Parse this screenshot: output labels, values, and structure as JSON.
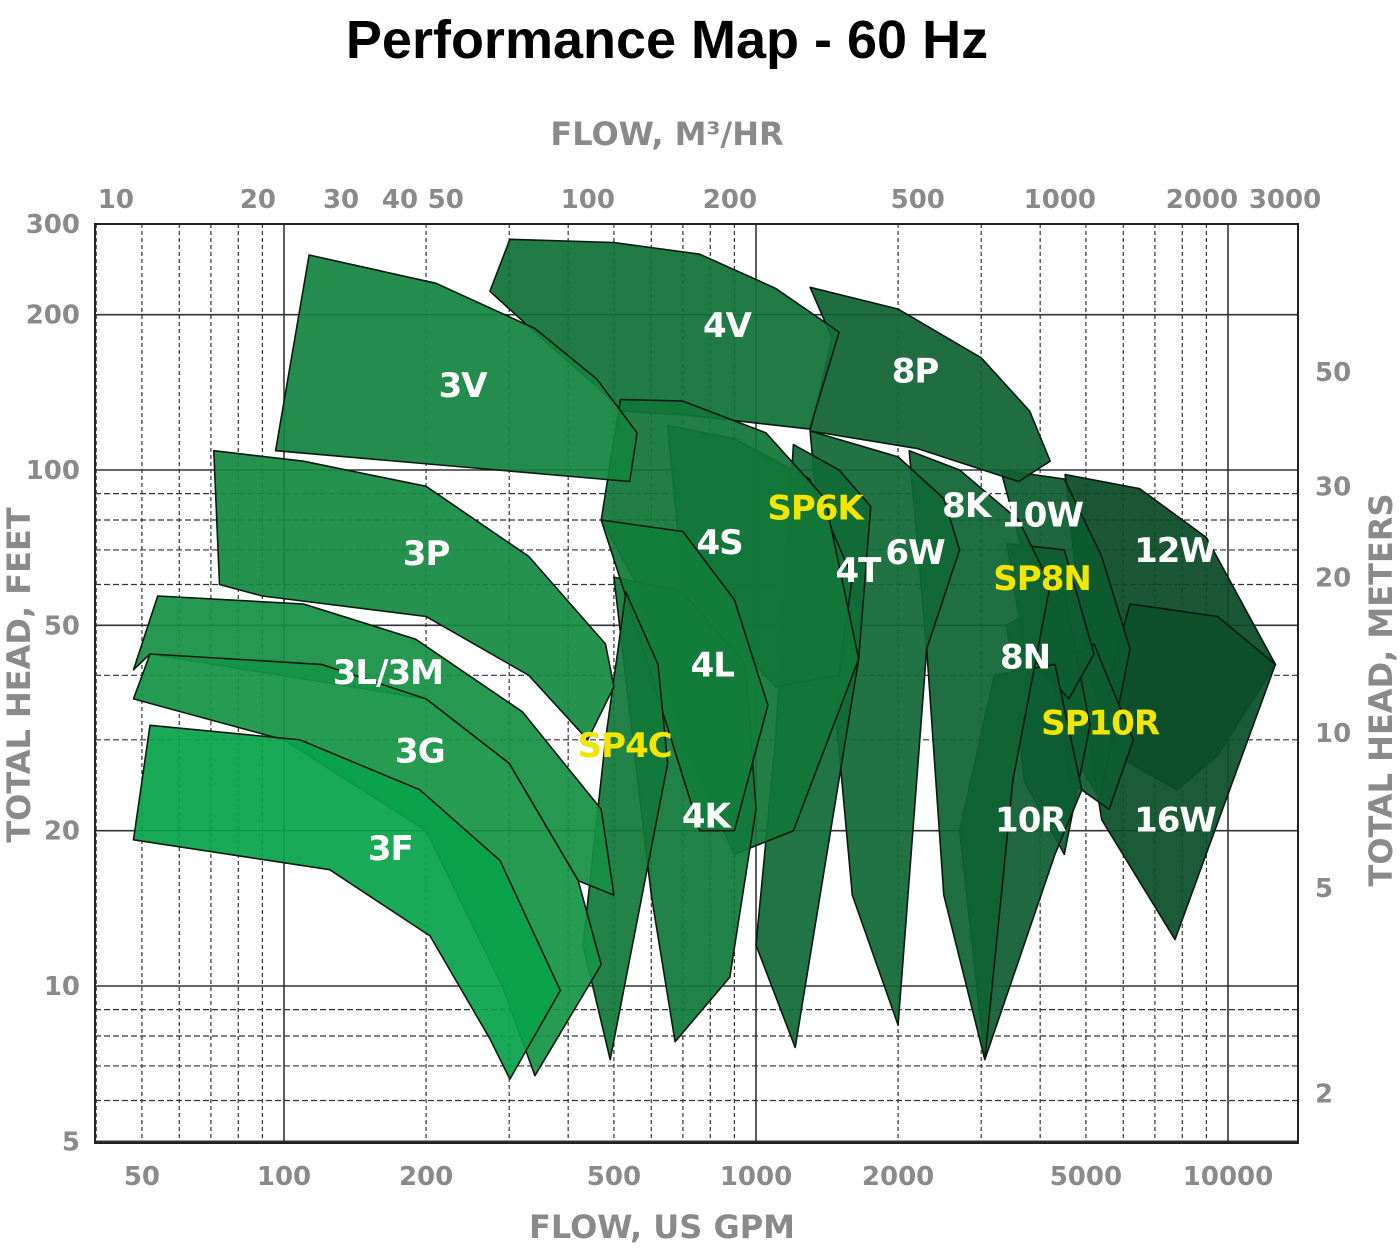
{
  "chart_data": {
    "type": "area",
    "title": "Performance Map - 60 Hz",
    "xlabel": "FLOW, US GPM",
    "x2label": "FLOW, M³/HR",
    "ylabel": "TOTAL HEAD, FEET",
    "y2label": "TOTAL HEAD, METERS",
    "xscale": "log",
    "yscale": "log",
    "xlim": [
      40,
      14000
    ],
    "ylim": [
      5,
      300
    ],
    "grid": true,
    "x_ticks": [
      50,
      100,
      200,
      500,
      1000,
      2000,
      5000,
      10000
    ],
    "x2_ticks": [
      10,
      20,
      30,
      40,
      50,
      100,
      200,
      500,
      1000,
      2000,
      3000
    ],
    "y_ticks": [
      5,
      10,
      20,
      50,
      100,
      200,
      300
    ],
    "y2_ticks": [
      2,
      5,
      10,
      20,
      30,
      50
    ],
    "label_colors": {
      "standard": "#ffffff",
      "sp": "#f2e600"
    },
    "regions": [
      {
        "name": "12W",
        "color": "#0a4a26",
        "label_at": [
          7723,
          70
        ],
        "label_style": "standard",
        "outline": [
          [
            4518,
            98
          ],
          [
            6500,
            92
          ],
          [
            9000,
            74
          ],
          [
            12600,
            42
          ],
          [
            9500,
            28
          ],
          [
            7800,
            24
          ],
          [
            5800,
            28
          ],
          [
            5000,
            42
          ]
        ]
      },
      {
        "name": "16W",
        "color": "#0b4f29",
        "label_at": [
          7723,
          21
        ],
        "label_style": "standard",
        "outline": [
          [
            6200,
            55
          ],
          [
            9500,
            52
          ],
          [
            12600,
            42
          ],
          [
            7723,
            12.3
          ],
          [
            5400,
            21
          ],
          [
            5100,
            29
          ]
        ]
      },
      {
        "name": "10W",
        "color": "#0d5a2f",
        "label_at": [
          4037,
          82
        ],
        "label_style": "standard",
        "outline": [
          [
            3300,
            100
          ],
          [
            4500,
            96
          ],
          [
            5400,
            68
          ],
          [
            6200,
            45
          ],
          [
            5357,
            23
          ],
          [
            4500,
            30
          ],
          [
            4000,
            52
          ]
        ]
      },
      {
        "name": "SP10R",
        "color": "#0e5c30",
        "label_at": [
          5357,
          32.4
        ],
        "label_style": "sp",
        "outline": [
          [
            4300,
            42
          ],
          [
            5200,
            46
          ],
          [
            6300,
            30
          ],
          [
            5600,
            22
          ],
          [
            4600,
            25
          ]
        ]
      },
      {
        "name": "8N",
        "color": "#0e5e31",
        "label_at": [
          3716,
          43.5
        ],
        "label_style": "standard",
        "outline": [
          [
            3400,
            50
          ],
          [
            4500,
            58
          ],
          [
            5100,
            32
          ],
          [
            4500,
            18
          ],
          [
            3700,
            25
          ]
        ]
      },
      {
        "name": "SP8N",
        "color": "#0e5e31",
        "label_at": [
          4037,
          61.8
        ],
        "label_style": "sp",
        "outline": [
          [
            3400,
            72
          ],
          [
            4500,
            70
          ],
          [
            5200,
            44
          ],
          [
            4600,
            36
          ],
          [
            3700,
            45
          ]
        ]
      },
      {
        "name": "10R",
        "color": "#0e5d31",
        "label_at": [
          3812,
          21
        ],
        "label_style": "standard",
        "outline": [
          [
            3200,
            40
          ],
          [
            4300,
            42
          ],
          [
            4900,
            24
          ],
          [
            4300,
            18
          ],
          [
            3053,
            7.2
          ],
          [
            2700,
            20
          ]
        ]
      },
      {
        "name": "8P",
        "color": "#0f6233",
        "label_at": [
          2172,
          156
        ],
        "label_style": "standard",
        "outline": [
          [
            1302,
            226
          ],
          [
            2000,
            205
          ],
          [
            3000,
            165
          ],
          [
            3800,
            130
          ],
          [
            4200,
            104
          ],
          [
            3600,
            95
          ],
          [
            2200,
            110
          ],
          [
            1302,
            119
          ],
          [
            1450,
            180
          ]
        ]
      },
      {
        "name": "8K",
        "color": "#0f6434",
        "label_at": [
          2788,
          85.5
        ],
        "label_style": "standard",
        "outline": [
          [
            2111,
            109
          ],
          [
            2700,
            100
          ],
          [
            3600,
            80
          ],
          [
            4200,
            60
          ],
          [
            3500,
            25
          ],
          [
            3053,
            7.2
          ],
          [
            2500,
            15
          ],
          [
            2300,
            45
          ]
        ]
      },
      {
        "name": "6W",
        "color": "#106835",
        "label_at": [
          2172,
          69.3
        ],
        "label_style": "standard",
        "outline": [
          [
            1302,
            119
          ],
          [
            2000,
            106
          ],
          [
            2500,
            88
          ],
          [
            2700,
            70
          ],
          [
            2300,
            45
          ],
          [
            2000,
            8.4
          ],
          [
            1600,
            15
          ],
          [
            1450,
            40
          ]
        ]
      },
      {
        "name": "4T",
        "color": "#106b36",
        "label_at": [
          1644,
          64
        ],
        "label_style": "standard",
        "outline": [
          [
            1200,
            112
          ],
          [
            1500,
            100
          ],
          [
            1750,
            85
          ],
          [
            1650,
            43
          ],
          [
            1211,
            7.6
          ],
          [
            1000,
            12
          ],
          [
            1100,
            30
          ]
        ]
      },
      {
        "name": "SP6K",
        "color": "#107037",
        "label_at": [
          1334,
          84.5
        ],
        "label_style": "sp",
        "outline": [
          [
            650,
            122
          ],
          [
            900,
            115
          ],
          [
            1300,
            96
          ],
          [
            1600,
            62
          ],
          [
            1500,
            40
          ],
          [
            1100,
            38
          ],
          [
            700,
            60
          ]
        ]
      },
      {
        "name": "4V",
        "color": "#107137",
        "label_at": [
          868,
          191
        ],
        "label_style": "standard",
        "outline": [
          [
            273,
            222
          ],
          [
            301,
            280
          ],
          [
            500,
            276
          ],
          [
            760,
            262
          ],
          [
            1100,
            225
          ],
          [
            1500,
            185
          ],
          [
            1300,
            120
          ],
          [
            700,
            128
          ],
          [
            520,
            130
          ],
          [
            460,
            145
          ],
          [
            340,
            185
          ]
        ]
      },
      {
        "name": "4S",
        "color": "#117638",
        "label_at": [
          837,
          72.5
        ],
        "label_style": "standard",
        "outline": [
          [
            516,
            137
          ],
          [
            700,
            136
          ],
          [
            1050,
            118
          ],
          [
            1400,
            88
          ],
          [
            1650,
            43
          ],
          [
            1200,
            20
          ],
          [
            900,
            18
          ],
          [
            700,
            30
          ],
          [
            560,
            60
          ],
          [
            470,
            80
          ]
        ]
      },
      {
        "name": "4K",
        "color": "#117a3a",
        "label_at": [
          783,
          21.4
        ],
        "label_style": "standard",
        "outline": [
          [
            500,
            62
          ],
          [
            700,
            58
          ],
          [
            950,
            42
          ],
          [
            1000,
            22
          ],
          [
            880,
            10.4
          ],
          [
            674,
            7.8
          ],
          [
            600,
            15
          ]
        ]
      },
      {
        "name": "4L",
        "color": "#127d3b",
        "label_at": [
          808,
          42
        ],
        "label_style": "standard",
        "outline": [
          [
            470,
            80
          ],
          [
            700,
            76
          ],
          [
            900,
            56
          ],
          [
            1060,
            35
          ],
          [
            900,
            20
          ],
          [
            760,
            20
          ],
          [
            600,
            40
          ]
        ]
      },
      {
        "name": "SP4C",
        "color": "#11793a",
        "label_at": [
          527,
          29.3
        ],
        "label_style": "sp",
        "outline": [
          [
            530,
            58
          ],
          [
            620,
            42
          ],
          [
            650,
            27
          ],
          [
            491,
            7.2
          ],
          [
            430,
            12
          ],
          [
            480,
            30
          ]
        ]
      },
      {
        "name": "3V",
        "color": "#13843f",
        "label_at": [
          239,
          146
        ],
        "label_style": "standard",
        "outline": [
          [
            113,
            261
          ],
          [
            210,
            230
          ],
          [
            340,
            188
          ],
          [
            460,
            150
          ],
          [
            560,
            118
          ],
          [
            540,
            95
          ],
          [
            96,
            109
          ]
        ]
      },
      {
        "name": "3P",
        "color": "#148b42",
        "label_at": [
          200,
          69
        ],
        "label_style": "standard",
        "outline": [
          [
            71,
            109
          ],
          [
            110,
            104
          ],
          [
            200,
            93
          ],
          [
            330,
            68
          ],
          [
            480,
            46
          ],
          [
            500,
            38
          ],
          [
            440,
            30
          ],
          [
            330,
            40
          ],
          [
            200,
            52
          ],
          [
            90,
            57
          ],
          [
            73,
            60
          ]
        ]
      },
      {
        "name": "3L/3M",
        "color": "#159044",
        "label_at": [
          166,
          40.6
        ],
        "label_style": "standard",
        "outline": [
          [
            48,
            41
          ],
          [
            54,
            57
          ],
          [
            110,
            55
          ],
          [
            190,
            47
          ],
          [
            320,
            34
          ],
          [
            470,
            22
          ],
          [
            500,
            15
          ],
          [
            420,
            16
          ],
          [
            300,
            27
          ],
          [
            200,
            36
          ],
          [
            52,
            44
          ]
        ]
      },
      {
        "name": "3G",
        "color": "#169546",
        "label_at": [
          194,
          28.6
        ],
        "label_style": "standard",
        "outline": [
          [
            48,
            36
          ],
          [
            52,
            44
          ],
          [
            120,
            42
          ],
          [
            200,
            36
          ],
          [
            300,
            27
          ],
          [
            420,
            16
          ],
          [
            470,
            11
          ],
          [
            340,
            6.7
          ],
          [
            290,
            10
          ],
          [
            200,
            20
          ],
          [
            100,
            30
          ]
        ]
      },
      {
        "name": "3F",
        "color": "#09a24a",
        "label_at": [
          168,
          18.5
        ],
        "label_style": "standard",
        "outline": [
          [
            48,
            19.2
          ],
          [
            52,
            32
          ],
          [
            108,
            30
          ],
          [
            194,
            24
          ],
          [
            287,
            17.5
          ],
          [
            385,
            9.8
          ],
          [
            301,
            6.6
          ],
          [
            273,
            7.9
          ],
          [
            204,
            12.5
          ],
          [
            125,
            16.8
          ]
        ]
      }
    ]
  }
}
